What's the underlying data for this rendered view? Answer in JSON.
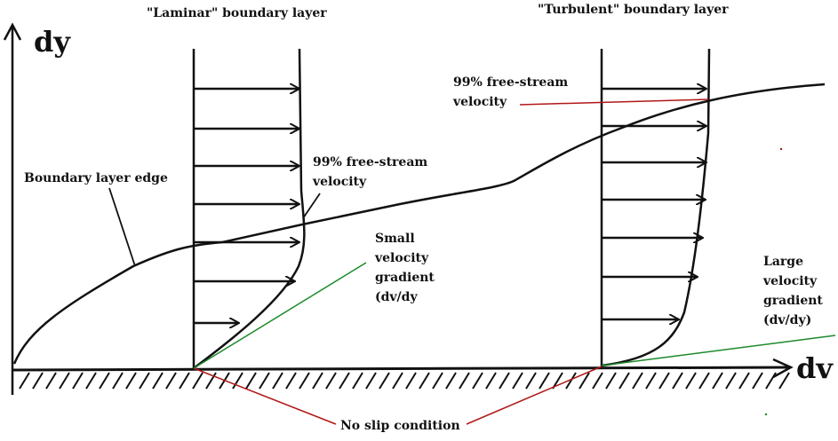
{
  "axes": {
    "y_label": "dy",
    "x_label": "dv"
  },
  "titles": {
    "laminar": "\"Laminar\" boundary layer",
    "turbulent": "\"Turbulent\" boundary layer"
  },
  "labels": {
    "boundary_edge": "Boundary layer edge",
    "laminar_freestream": "99% free-stream\nvelocity",
    "turbulent_freestream": "99% free-stream\nvelocity",
    "small_gradient": "Small\nvelocity\ngradient\n(dv/dy",
    "large_gradient": "Large\nvelocity\ngradient\n(dv/dy)",
    "no_slip": "No slip condition"
  },
  "colors": {
    "ink": "#111111",
    "pointer_red": "#b01818",
    "gradient_green": "#1c8a2a",
    "background": "#ffffff"
  }
}
